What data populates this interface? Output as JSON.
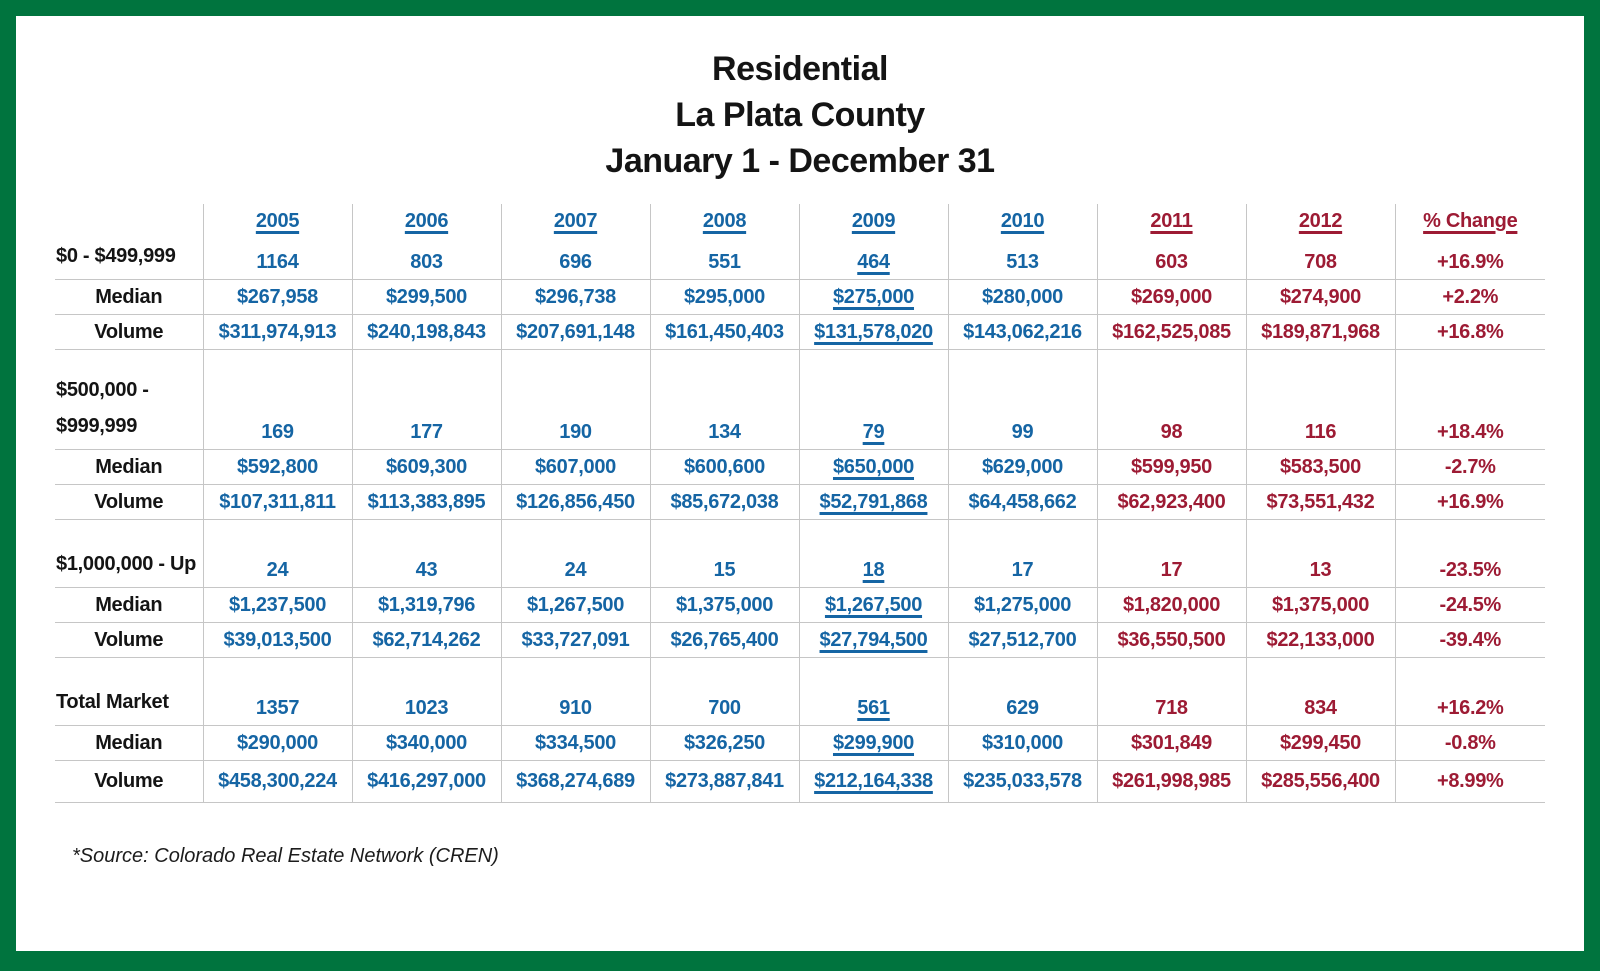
{
  "title": {
    "lines": [
      "Residential",
      "La Plata County",
      "January 1 - December 31"
    ]
  },
  "table": {
    "underlined_column": "2009",
    "columns": [
      {
        "label": "2005",
        "tone": "blue"
      },
      {
        "label": "2006",
        "tone": "blue"
      },
      {
        "label": "2007",
        "tone": "blue"
      },
      {
        "label": "2008",
        "tone": "blue"
      },
      {
        "label": "2009",
        "tone": "blue"
      },
      {
        "label": "2010",
        "tone": "blue"
      },
      {
        "label": "2011",
        "tone": "red"
      },
      {
        "label": "2012",
        "tone": "red"
      },
      {
        "label": "% Change",
        "tone": "red"
      }
    ],
    "bands": [
      {
        "label_lines": [
          "$0 - $499,999"
        ],
        "rows": [
          {
            "label": "",
            "values": [
              "1164",
              "803",
              "696",
              "551",
              "464",
              "513",
              "603",
              "708",
              "+16.9%"
            ]
          },
          {
            "label": "Median",
            "values": [
              "$267,958",
              "$299,500",
              "$296,738",
              "$295,000",
              "$275,000",
              "$280,000",
              "$269,000",
              "$274,900",
              "+2.2%"
            ]
          },
          {
            "label": "Volume",
            "values": [
              "$311,974,913",
              "$240,198,843",
              "$207,691,148",
              "$161,450,403",
              "$131,578,020",
              "$143,062,216",
              "$162,525,085",
              "$189,871,968",
              "+16.8%"
            ]
          }
        ]
      },
      {
        "label_lines": [
          "$500,000 -",
          "$999,999"
        ],
        "rows": [
          {
            "label": "",
            "values": [
              "169",
              "177",
              "190",
              "134",
              "79",
              "99",
              "98",
              "116",
              "+18.4%"
            ]
          },
          {
            "label": "Median",
            "values": [
              "$592,800",
              "$609,300",
              "$607,000",
              "$600,600",
              "$650,000",
              "$629,000",
              "$599,950",
              "$583,500",
              "-2.7%"
            ]
          },
          {
            "label": "Volume",
            "values": [
              "$107,311,811",
              "$113,383,895",
              "$126,856,450",
              "$85,672,038",
              "$52,791,868",
              "$64,458,662",
              "$62,923,400",
              "$73,551,432",
              "+16.9%"
            ]
          }
        ]
      },
      {
        "label_lines": [
          "$1,000,000 - Up"
        ],
        "rows": [
          {
            "label": "",
            "values": [
              "24",
              "43",
              "24",
              "15",
              "18",
              "17",
              "17",
              "13",
              "-23.5%"
            ]
          },
          {
            "label": "Median",
            "values": [
              "$1,237,500",
              "$1,319,796",
              "$1,267,500",
              "$1,375,000",
              "$1,267,500",
              "$1,275,000",
              "$1,820,000",
              "$1,375,000",
              "-24.5%"
            ]
          },
          {
            "label": "Volume",
            "values": [
              "$39,013,500",
              "$62,714,262",
              "$33,727,091",
              "$26,765,400",
              "$27,794,500",
              "$27,512,700",
              "$36,550,500",
              "$22,133,000",
              "-39.4%"
            ]
          }
        ]
      },
      {
        "label_lines": [
          "Total Market"
        ],
        "rows": [
          {
            "label": "",
            "values": [
              "1357",
              "1023",
              "910",
              "700",
              "561",
              "629",
              "718",
              "834",
              "+16.2%"
            ]
          },
          {
            "label": "Median",
            "values": [
              "$290,000",
              "$340,000",
              "$334,500",
              "$326,250",
              "$299,900",
              "$310,000",
              "$301,849",
              "$299,450",
              "-0.8%"
            ]
          },
          {
            "label": "Volume",
            "values": [
              "$458,300,224",
              "$416,297,000",
              "$368,274,689",
              "$273,887,841",
              "$212,164,338",
              "$235,033,578",
              "$261,998,985",
              "$285,556,400",
              "+8.99%"
            ]
          }
        ]
      }
    ]
  },
  "footnote": "*Source: Colorado Real Estate Network (CREN)",
  "colors": {
    "border_green": "#00743e",
    "year_blue": "#1565a4",
    "accent_red": "#9d1b34",
    "grid_gray": "#c6c6c6",
    "text_black": "#141414"
  }
}
